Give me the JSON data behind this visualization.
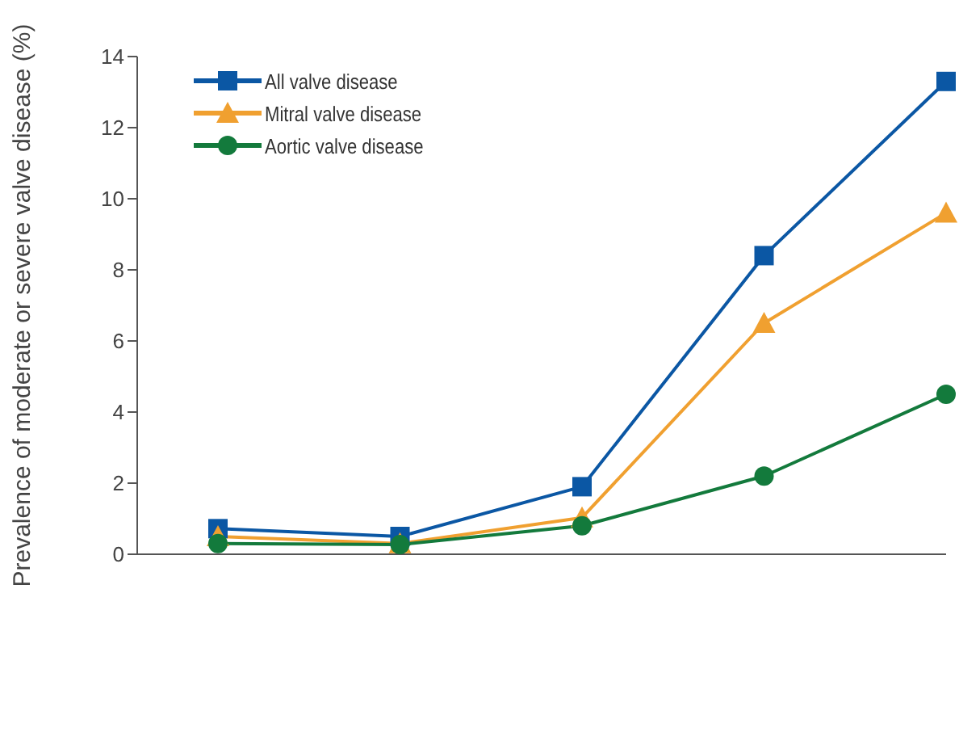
{
  "chart_data": {
    "type": "line",
    "ylabel": "Prevalence of moderate or severe valve disease (%)",
    "categories": [
      null,
      null,
      null,
      null,
      null
    ],
    "series": [
      {
        "name": "All valve disease",
        "color": "#0b57a4",
        "marker": "square",
        "values": [
          0.72,
          0.5,
          1.9,
          8.4,
          13.3
        ]
      },
      {
        "name": "Mitral valve disease",
        "color": "#f0a030",
        "marker": "triangle",
        "values": [
          0.5,
          0.3,
          1.03,
          6.5,
          9.6
        ]
      },
      {
        "name": "Aortic valve disease",
        "color": "#137a3c",
        "marker": "circle",
        "values": [
          0.3,
          0.27,
          0.8,
          2.2,
          4.5
        ]
      }
    ],
    "ylim": [
      0,
      14
    ],
    "yticks": [
      0,
      2,
      4,
      6,
      8,
      10,
      12,
      14
    ],
    "tick_labels": "y",
    "legend": "top left",
    "line_style": "solid"
  }
}
